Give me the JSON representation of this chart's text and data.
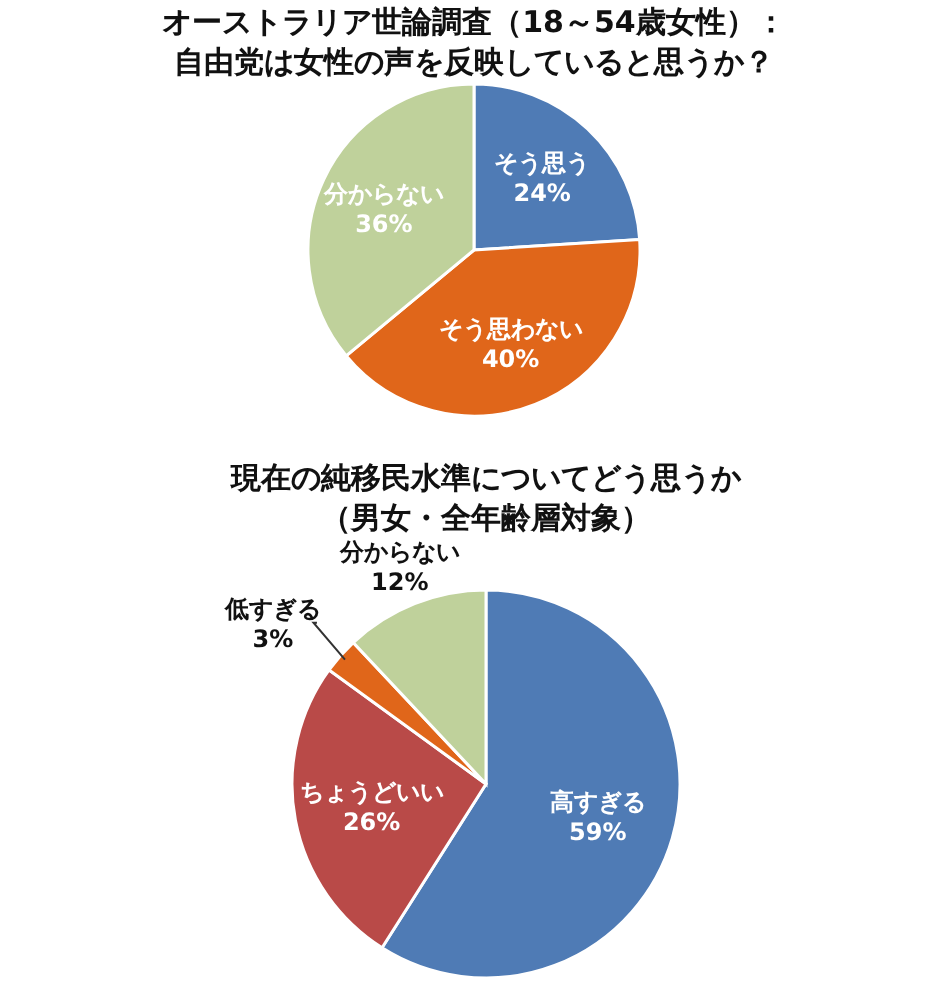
{
  "chart_data": [
    {
      "type": "pie",
      "title": "オーストラリア世論調査（18～54歳女性）：",
      "subtitle": "自由党は女性の声を反映していると思うか？",
      "categories": [
        "そう思う",
        "そう思わない",
        "分からない"
      ],
      "values": [
        24,
        40,
        36
      ],
      "value_labels": [
        "24%",
        "40%",
        "36%"
      ],
      "colors": [
        "#4f7bb5",
        "#e0661a",
        "#bfd19b"
      ]
    },
    {
      "type": "pie",
      "title": "現在の純移民水準についてどう思うか",
      "subtitle": "（男女・全年齢層対象）",
      "categories": [
        "高すぎる",
        "ちょうどいい",
        "低すぎる",
        "分からない"
      ],
      "values": [
        59,
        26,
        3,
        12
      ],
      "value_labels": [
        "59%",
        "26%",
        "3%",
        "12%"
      ],
      "colors": [
        "#4f7bb5",
        "#b94a48",
        "#e0661a",
        "#bfd19b"
      ]
    }
  ]
}
